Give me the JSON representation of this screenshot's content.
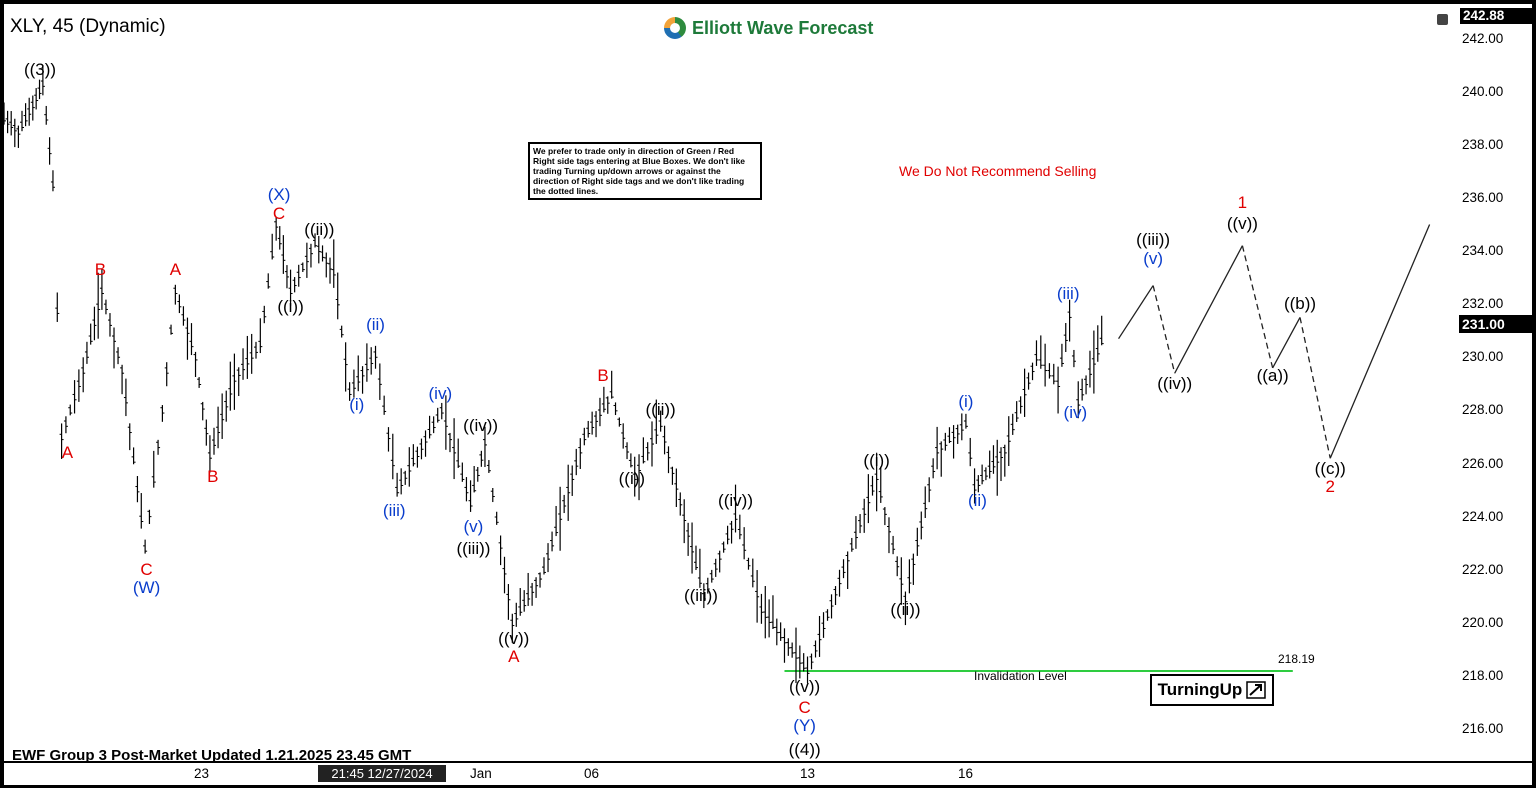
{
  "header": {
    "symbol": "XLY, 45 (Dynamic)",
    "brand": "Elliott Wave Forecast",
    "brand_colors": [
      "#2e8b3e",
      "#1f6fb2",
      "#f2a33a"
    ]
  },
  "notes": {
    "disclaimer": "We prefer to trade only in direction of Green / Red Right side tags entering at Blue Boxes. We don't like trading Turning up/down arrows or against the direction of Right side tags and we don't like trading the dotted lines.",
    "warning": "We Do Not Recommend Selling",
    "footer": "EWF Group 3 Post-Market Updated 1.21.2025 23.45 GMT",
    "invalidation_label": "Invalidation Level",
    "invalidation_value": "218.19",
    "turning_badge": "TurningUp"
  },
  "axis": {
    "top_label": "242.88",
    "current_price": "231.00",
    "y_ticks": [
      "242.00",
      "240.00",
      "238.00",
      "236.00",
      "234.00",
      "232.00",
      "230.00",
      "228.00",
      "226.00",
      "224.00",
      "222.00",
      "220.00",
      "218.00",
      "216.00"
    ],
    "x_ticks": [
      "23",
      "Jan",
      "06",
      "13",
      "16"
    ],
    "cursor_time": "21:45 12/27/2024"
  },
  "colors": {
    "red": "#e00000",
    "blue": "#0a3dcc",
    "black": "#000000",
    "green": "#2ecc40"
  },
  "chart_data": {
    "type": "line",
    "title": "XLY, 45 (Dynamic)",
    "ylim": [
      214.8,
      243.3
    ],
    "xlim": [
      0,
      100
    ],
    "invalidation_level": 218.19,
    "last_price": 231.0,
    "price_path": [
      {
        "x": 0,
        "y": 239.0
      },
      {
        "x": 1,
        "y": 238.5
      },
      {
        "x": 2,
        "y": 239.5
      },
      {
        "x": 2.7,
        "y": 240.3
      },
      {
        "x": 3.4,
        "y": 236.5
      },
      {
        "x": 4.0,
        "y": 227.0
      },
      {
        "x": 5.5,
        "y": 229.5
      },
      {
        "x": 6.8,
        "y": 232.5
      },
      {
        "x": 8.2,
        "y": 229.5
      },
      {
        "x": 9.8,
        "y": 222.8
      },
      {
        "x": 11.0,
        "y": 228.0
      },
      {
        "x": 11.9,
        "y": 232.5
      },
      {
        "x": 13.3,
        "y": 230.0
      },
      {
        "x": 14.3,
        "y": 226.3
      },
      {
        "x": 16.0,
        "y": 229.2
      },
      {
        "x": 17.8,
        "y": 230.5
      },
      {
        "x": 18.9,
        "y": 235.0
      },
      {
        "x": 19.9,
        "y": 232.5
      },
      {
        "x": 21.6,
        "y": 234.3
      },
      {
        "x": 22.9,
        "y": 233.2
      },
      {
        "x": 24.0,
        "y": 228.7
      },
      {
        "x": 25.8,
        "y": 230.1
      },
      {
        "x": 27.3,
        "y": 225.0
      },
      {
        "x": 30.4,
        "y": 228.0
      },
      {
        "x": 32.4,
        "y": 224.5
      },
      {
        "x": 33.4,
        "y": 226.8
      },
      {
        "x": 35.3,
        "y": 220.0
      },
      {
        "x": 37.5,
        "y": 222.0
      },
      {
        "x": 40.3,
        "y": 227.0
      },
      {
        "x": 42.2,
        "y": 228.6
      },
      {
        "x": 43.8,
        "y": 225.5
      },
      {
        "x": 45.6,
        "y": 227.5
      },
      {
        "x": 48.6,
        "y": 221.0
      },
      {
        "x": 50.8,
        "y": 224.0
      },
      {
        "x": 52.6,
        "y": 220.5
      },
      {
        "x": 55.8,
        "y": 218.2
      },
      {
        "x": 58.3,
        "y": 222.0
      },
      {
        "x": 60.6,
        "y": 225.5
      },
      {
        "x": 62.6,
        "y": 220.9
      },
      {
        "x": 64.8,
        "y": 226.5
      },
      {
        "x": 66.8,
        "y": 227.5
      },
      {
        "x": 67.4,
        "y": 225.1
      },
      {
        "x": 69.5,
        "y": 226.5
      },
      {
        "x": 71.7,
        "y": 230.0
      },
      {
        "x": 73.2,
        "y": 229.0
      },
      {
        "x": 74.0,
        "y": 231.6
      },
      {
        "x": 74.6,
        "y": 228.3
      },
      {
        "x": 76.5,
        "y": 231.0
      }
    ],
    "projection": [
      {
        "x": 77.4,
        "y": 230.7,
        "style": "solid"
      },
      {
        "x": 79.8,
        "y": 232.7,
        "style": "dashed"
      },
      {
        "x": 81.3,
        "y": 229.4,
        "style": "solid"
      },
      {
        "x": 86.0,
        "y": 234.2,
        "style": "dashed"
      },
      {
        "x": 88.1,
        "y": 229.6,
        "style": "solid"
      },
      {
        "x": 90.0,
        "y": 231.5,
        "style": "dashed"
      },
      {
        "x": 92.1,
        "y": 226.2,
        "style": "solid"
      },
      {
        "x": 99.0,
        "y": 235.0,
        "style": "end"
      }
    ],
    "wave_labels": [
      {
        "text": "((3))",
        "x": 2.5,
        "y": 240.8,
        "color": "black"
      },
      {
        "text": "A",
        "x": 4.4,
        "y": 226.4,
        "color": "red"
      },
      {
        "text": "B",
        "x": 6.7,
        "y": 233.3,
        "color": "red"
      },
      {
        "text": "C",
        "x": 9.9,
        "y": 222.0,
        "color": "red"
      },
      {
        "text": "(W)",
        "x": 9.9,
        "y": 221.3,
        "color": "blue"
      },
      {
        "text": "A",
        "x": 11.9,
        "y": 233.3,
        "color": "red"
      },
      {
        "text": "B",
        "x": 14.5,
        "y": 225.5,
        "color": "red"
      },
      {
        "text": "(X)",
        "x": 19.1,
        "y": 236.1,
        "color": "blue"
      },
      {
        "text": "C",
        "x": 19.1,
        "y": 235.4,
        "color": "red"
      },
      {
        "text": "((ii))",
        "x": 21.9,
        "y": 234.8,
        "color": "black"
      },
      {
        "text": "((i))",
        "x": 19.9,
        "y": 231.9,
        "color": "black"
      },
      {
        "text": "(ii)",
        "x": 25.8,
        "y": 231.2,
        "color": "blue"
      },
      {
        "text": "(i)",
        "x": 24.5,
        "y": 228.2,
        "color": "blue"
      },
      {
        "text": "(iv)",
        "x": 30.3,
        "y": 228.6,
        "color": "blue"
      },
      {
        "text": "((iv))",
        "x": 33.1,
        "y": 227.4,
        "color": "black"
      },
      {
        "text": "(iii)",
        "x": 27.1,
        "y": 224.2,
        "color": "blue"
      },
      {
        "text": "(v)",
        "x": 32.6,
        "y": 223.6,
        "color": "blue"
      },
      {
        "text": "((iii))",
        "x": 32.6,
        "y": 222.8,
        "color": "black"
      },
      {
        "text": "((v))",
        "x": 35.4,
        "y": 219.4,
        "color": "black"
      },
      {
        "text": "A",
        "x": 35.4,
        "y": 218.7,
        "color": "red"
      },
      {
        "text": "B",
        "x": 41.6,
        "y": 229.3,
        "color": "red"
      },
      {
        "text": "((ii))",
        "x": 45.6,
        "y": 228.0,
        "color": "black"
      },
      {
        "text": "((i))",
        "x": 43.6,
        "y": 225.4,
        "color": "black"
      },
      {
        "text": "((iv))",
        "x": 50.8,
        "y": 224.6,
        "color": "black"
      },
      {
        "text": "((iii))",
        "x": 48.4,
        "y": 221.0,
        "color": "black"
      },
      {
        "text": "((v))",
        "x": 55.6,
        "y": 217.6,
        "color": "black"
      },
      {
        "text": "C",
        "x": 55.6,
        "y": 216.8,
        "color": "red"
      },
      {
        "text": "(Y)",
        "x": 55.6,
        "y": 216.1,
        "color": "blue"
      },
      {
        "text": "((4))",
        "x": 55.6,
        "y": 215.2,
        "color": "black"
      },
      {
        "text": "((i))",
        "x": 60.6,
        "y": 226.1,
        "color": "black"
      },
      {
        "text": "((ii))",
        "x": 62.6,
        "y": 220.5,
        "color": "black"
      },
      {
        "text": "(i)",
        "x": 66.8,
        "y": 228.3,
        "color": "blue"
      },
      {
        "text": "(ii)",
        "x": 67.6,
        "y": 224.6,
        "color": "blue"
      },
      {
        "text": "(iii)",
        "x": 73.9,
        "y": 232.4,
        "color": "blue"
      },
      {
        "text": "(iv)",
        "x": 74.4,
        "y": 227.9,
        "color": "blue"
      },
      {
        "text": "((iii))",
        "x": 79.8,
        "y": 234.4,
        "color": "black"
      },
      {
        "text": "(v)",
        "x": 79.8,
        "y": 233.7,
        "color": "blue"
      },
      {
        "text": "((iv))",
        "x": 81.3,
        "y": 229.0,
        "color": "black"
      },
      {
        "text": "1",
        "x": 86.0,
        "y": 235.8,
        "color": "red"
      },
      {
        "text": "((v))",
        "x": 86.0,
        "y": 235.0,
        "color": "black"
      },
      {
        "text": "((b))",
        "x": 90.0,
        "y": 232.0,
        "color": "black"
      },
      {
        "text": "((a))",
        "x": 88.1,
        "y": 229.3,
        "color": "black"
      },
      {
        "text": "((c))",
        "x": 92.1,
        "y": 225.8,
        "color": "black"
      },
      {
        "text": "2",
        "x": 92.1,
        "y": 225.1,
        "color": "red"
      }
    ]
  }
}
